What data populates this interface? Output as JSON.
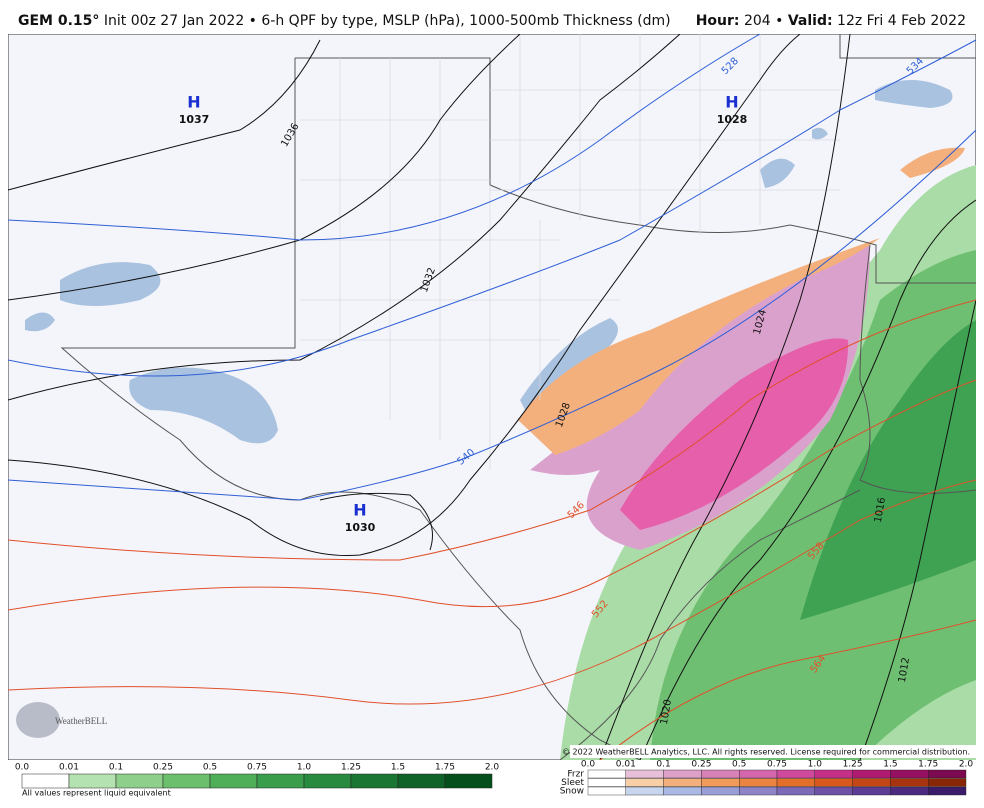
{
  "header": {
    "model": "GEM 0.15°",
    "description": "Init 00z 27 Jan 2022 • 6-h QPF by type, MSLP (hPa), 1000-500mb Thickness (dm)",
    "hour_label": "Hour:",
    "hour_value": "204 •",
    "valid_label": "Valid:",
    "valid_value": "12z Fri 4 Feb 2022"
  },
  "map": {
    "pressure_centers": [
      {
        "letter": "H",
        "value": "1037"
      },
      {
        "letter": "H",
        "value": "1028"
      },
      {
        "letter": "H",
        "value": "1030"
      }
    ],
    "isobar_labels": [
      "1036",
      "1032",
      "1028",
      "1024",
      "1016",
      "1012",
      "1020"
    ],
    "thickness_labels": [
      "528",
      "534",
      "540",
      "546",
      "552",
      "558",
      "564"
    ],
    "copyright": "© 2022 WeatherBELL Analytics, LLC. All rights reserved. License required for commercial distribution.",
    "logo": "WeatherBELL"
  },
  "legend": {
    "rain": {
      "ticks": [
        "0.0",
        "0.01",
        "0.1",
        "0.25",
        "0.5",
        "0.75",
        "1.0",
        "1.25",
        "1.5",
        "1.75",
        "2.0"
      ],
      "note": "All values represent liquid equivalent"
    },
    "mixed": {
      "ticks": [
        "0.0",
        "0.01",
        "0.1",
        "0.25",
        "0.5",
        "0.75",
        "1.0",
        "1.25",
        "1.5",
        "1.75",
        "2.0"
      ],
      "rows": [
        "Frzr",
        "Sleet",
        "Snow"
      ]
    }
  }
}
